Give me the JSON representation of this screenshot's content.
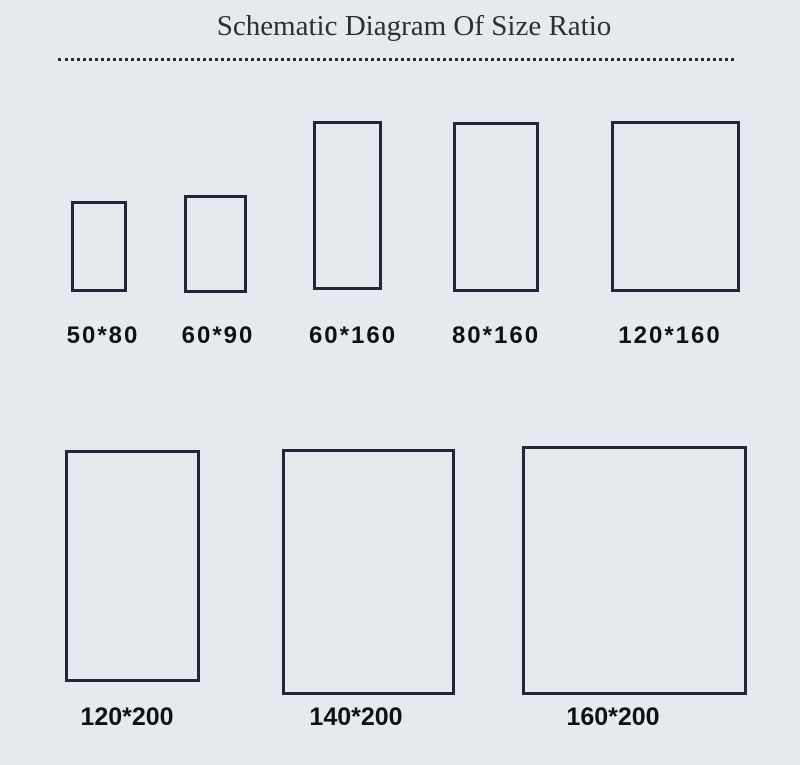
{
  "header": {
    "title": "Schematic Diagram Of Size Ratio"
  },
  "colors": {
    "background": "#e6e9ed",
    "frame_border": "#232838",
    "label_text": "#111111",
    "title_text": "#2c2f33"
  },
  "sizes": [
    {
      "label": "50*80"
    },
    {
      "label": "60*90"
    },
    {
      "label": "60*160"
    },
    {
      "label": "80*160"
    },
    {
      "label": "120*160"
    },
    {
      "label": "120*200"
    },
    {
      "label": "140*200"
    },
    {
      "label": "160*200"
    }
  ]
}
